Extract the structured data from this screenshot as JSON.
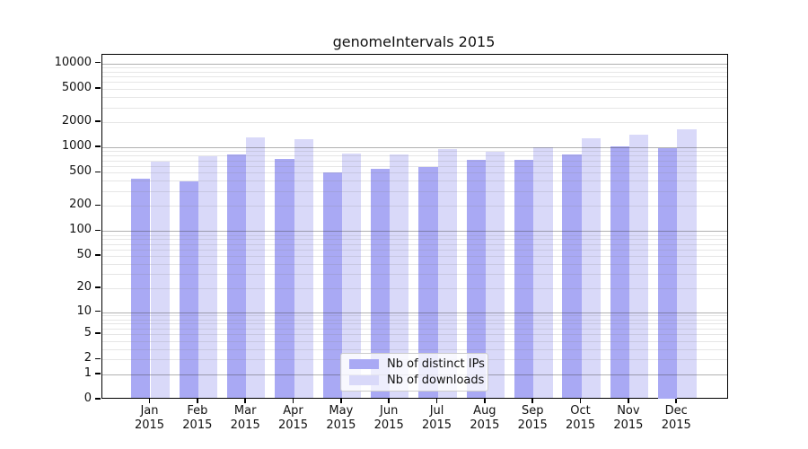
{
  "chart_data": {
    "type": "bar",
    "title": "genomeIntervals 2015",
    "categories": [
      "Jan 2015",
      "Feb 2015",
      "Mar 2015",
      "Apr 2015",
      "May 2015",
      "Jun 2015",
      "Jul 2015",
      "Aug 2015",
      "Sep 2015",
      "Oct 2015",
      "Nov 2015",
      "Dec 2015"
    ],
    "series": [
      {
        "name": "Nb of distinct IPs",
        "color": "#a9a9f4",
        "values": [
          420,
          390,
          820,
          720,
          505,
          560,
          580,
          715,
          710,
          830,
          1020,
          975
        ]
      },
      {
        "name": "Nb of downloads",
        "color": "#d9d9f9",
        "values": [
          685,
          790,
          1330,
          1240,
          845,
          830,
          955,
          890,
          1005,
          1270,
          1430,
          1625
        ]
      }
    ],
    "yscale": "log10(value+1)",
    "ylim": [
      0,
      10000
    ],
    "yticks": [
      0,
      1,
      2,
      5,
      10,
      20,
      50,
      100,
      200,
      500,
      1000,
      2000,
      5000,
      10000
    ],
    "major_grid_values": [
      1,
      10,
      100,
      1000,
      10000
    ],
    "grid": true,
    "legend_position": "lower center",
    "xlabel": "",
    "ylabel": ""
  },
  "colors": {
    "bar_dark": "#a9a9f4",
    "bar_light": "#d9d9f9",
    "axis": "#000000",
    "major_grid": "rgba(60,60,60,0.40)",
    "minor_grid": "rgba(130,130,130,0.20)",
    "legend_border": "#cccccc",
    "legend_background": "rgba(255,255,255,0.8)"
  }
}
